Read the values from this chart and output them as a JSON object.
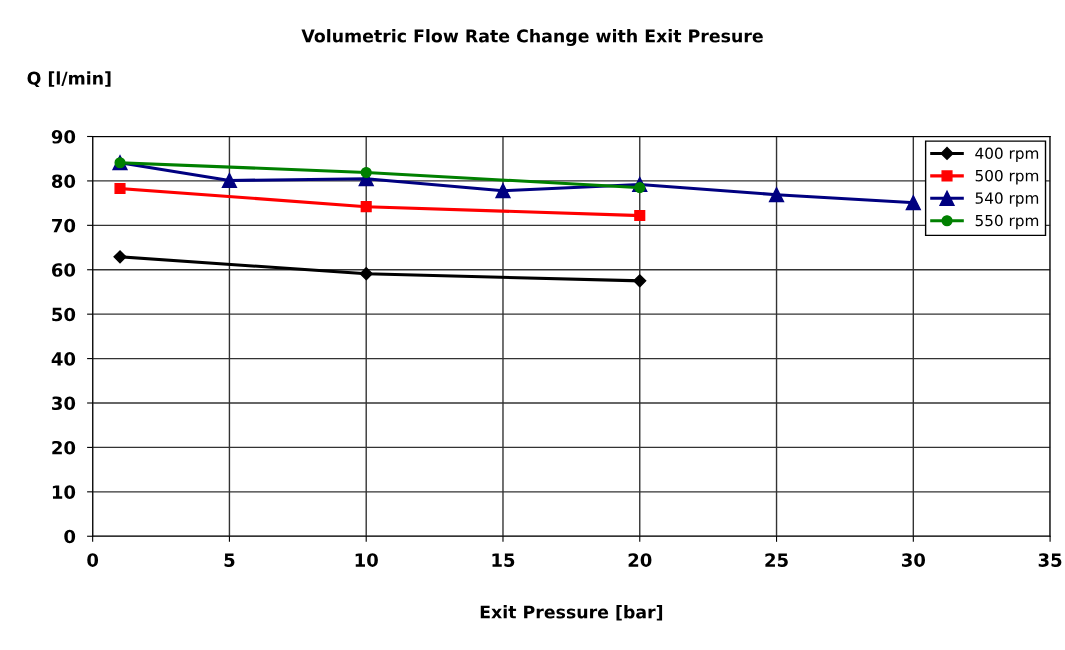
{
  "chart_data": {
    "type": "line",
    "title": "Volumetric Flow Rate Change with Exit Presure",
    "xlabel": "Exit Pressure [bar]",
    "ylabel": "Q [l/min]",
    "xlim": [
      0,
      35
    ],
    "xticks": [
      0,
      5,
      10,
      15,
      20,
      25,
      30,
      35
    ],
    "ylim": [
      0,
      90
    ],
    "yticks": [
      0,
      10,
      20,
      30,
      40,
      50,
      60,
      70,
      80,
      90
    ],
    "grid": true,
    "legend": "top right",
    "series": [
      {
        "name": "400 rpm",
        "color": "#000000",
        "marker": "diamond",
        "x": [
          1,
          10,
          20
        ],
        "values": [
          62.9,
          59.1,
          57.5
        ]
      },
      {
        "name": "500 rpm",
        "color": "#ff0000",
        "marker": "square",
        "x": [
          1,
          10,
          20
        ],
        "values": [
          78.3,
          74.2,
          72.2
        ]
      },
      {
        "name": "540 rpm",
        "color": "#000080",
        "marker": "triangle",
        "x": [
          1,
          5,
          10,
          15,
          20,
          25,
          30
        ],
        "values": [
          84.1,
          80.1,
          80.5,
          77.8,
          79.2,
          76.9,
          75.1
        ]
      },
      {
        "name": "550 rpm",
        "color": "#008000",
        "marker": "circle",
        "x": [
          1,
          10,
          20
        ],
        "values": [
          84.1,
          81.9,
          78.5
        ]
      }
    ]
  }
}
